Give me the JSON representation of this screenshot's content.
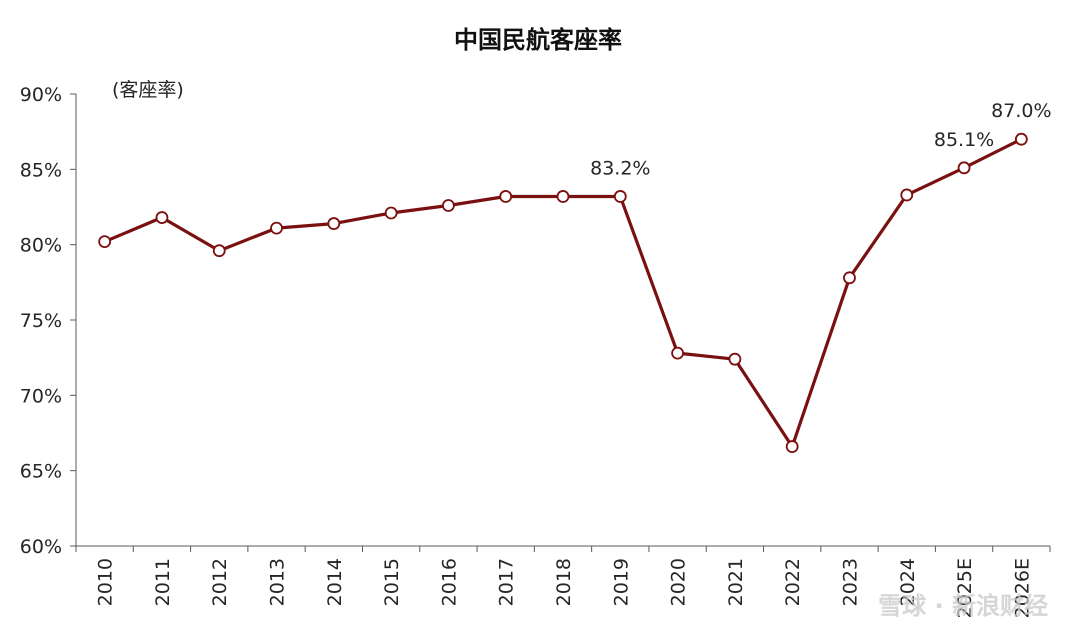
{
  "watermark": "雪球 · 新浪财经",
  "chart_data": {
    "type": "line",
    "title": "中国民航客座率",
    "unit_label": "(客座率)",
    "xlabel": "",
    "ylabel": "",
    "categories": [
      "2010",
      "2011",
      "2012",
      "2013",
      "2014",
      "2015",
      "2016",
      "2017",
      "2018",
      "2019",
      "2020",
      "2021",
      "2022",
      "2023",
      "2024",
      "2025E",
      "2026E"
    ],
    "series": [
      {
        "values": [
          80.2,
          81.8,
          79.6,
          81.1,
          81.4,
          82.1,
          82.6,
          83.2,
          83.2,
          83.2,
          72.8,
          72.4,
          66.6,
          77.8,
          83.3,
          85.1,
          87.0
        ]
      }
    ],
    "ylim": [
      60,
      90
    ],
    "yticks": [
      60,
      65,
      70,
      75,
      80,
      85,
      90
    ],
    "ytick_labels": [
      "60%",
      "65%",
      "70%",
      "75%",
      "80%",
      "85%",
      "90%"
    ],
    "data_labels": [
      {
        "index": 9,
        "text": "83.2%"
      },
      {
        "index": 15,
        "text": "85.1%"
      },
      {
        "index": 16,
        "text": "87.0%"
      }
    ],
    "grid": false,
    "legend": "none",
    "colors": {
      "line": "#7b1010",
      "marker_fill": "#ffffff",
      "axis": "#595959"
    }
  }
}
